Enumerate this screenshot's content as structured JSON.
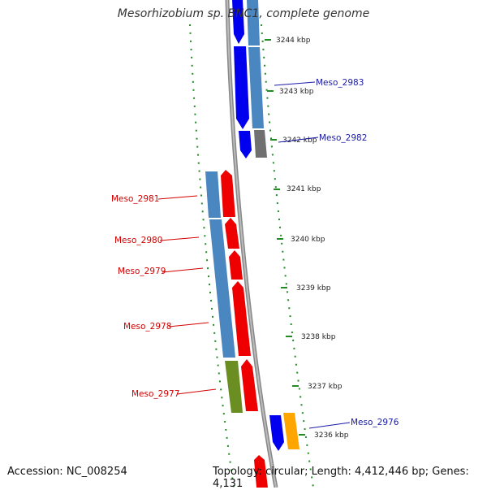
{
  "title": "Mesorhizobium sp. BNC1, complete genome",
  "footer": {
    "accession": "Accession: NC_008254",
    "topology": "Topology: circular; Length: 4,412,446 bp; Genes: 4,131"
  },
  "ticks": [
    "3244 kbp",
    "3243 kbp",
    "3242 kbp",
    "3241 kbp",
    "3240 kbp",
    "3239 kbp",
    "3238 kbp",
    "3237 kbp",
    "3236 kbp"
  ],
  "genes_reverse": [
    "Meso_2981",
    "Meso_2980",
    "Meso_2979",
    "Meso_2978",
    "Meso_2977"
  ],
  "genes_forward": [
    "Meso_2983",
    "Meso_2982",
    "Meso_2976"
  ],
  "colors": {
    "forward": "#0000ee",
    "reverse": "#ee0000",
    "cog_blue": "#4a86c0",
    "cog_gray": "#707070",
    "cog_green": "#6b8e23",
    "cog_orange": "#ffa500",
    "backbone": "#888888",
    "tick": "#228b22",
    "label_red": "#d40000",
    "label_blue": "#1a1aa8"
  }
}
